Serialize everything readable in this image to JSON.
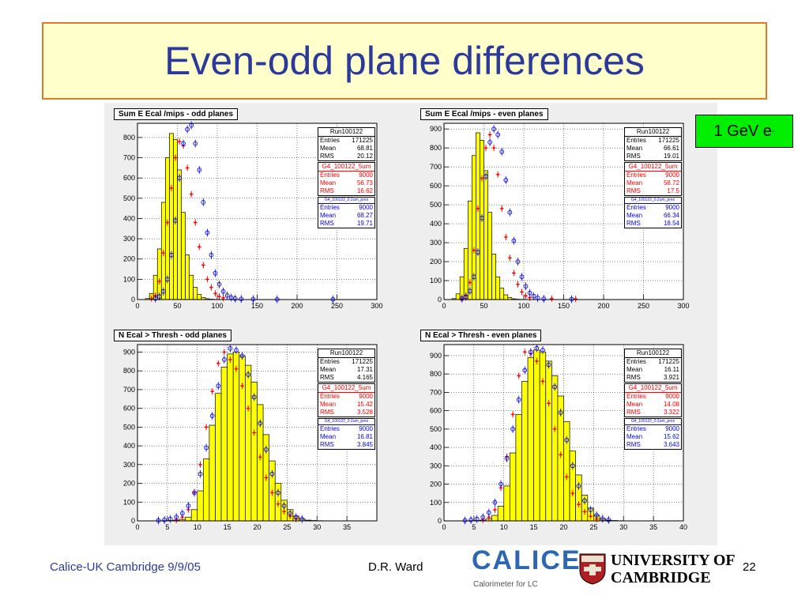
{
  "slide": {
    "title": "Even-odd plane differences",
    "energy_label": "1 GeV e",
    "energy_sup": "-",
    "footer_left": "Calice-UK Cambridge 9/9/05",
    "footer_author": "D.R. Ward",
    "page_number": "22",
    "logo_calice_text": "CALICE",
    "logo_calice_sub": "Calorimeter for LC",
    "logo_cambridge_line1": "UNIVERSITY OF",
    "logo_cambridge_line2": "CAMBRIDGE"
  },
  "colors": {
    "title_text": "#2b3a9a",
    "title_bg": "#ffffcc",
    "title_border": "#e07a2a",
    "data_fill": "#ffff00",
    "g4_5um": "#ff0000",
    "g4_02um": "#0000ff",
    "energy_bg": "#00ee00"
  },
  "chart_data": [
    {
      "type": "bar",
      "title": "Sum E Ecal  /mips - odd planes",
      "xlim": [
        0,
        300
      ],
      "ylim": [
        0,
        870
      ],
      "xticks": [
        "0",
        "50",
        "100",
        "150",
        "200",
        "250",
        "300"
      ],
      "yticks": [
        "0",
        "100",
        "200",
        "300",
        "400",
        "500",
        "600",
        "700",
        "800"
      ],
      "bin_width": 5,
      "bin_edges_start": 0,
      "data_hist": [
        0,
        0,
        5,
        30,
        120,
        250,
        480,
        700,
        820,
        790,
        640,
        430,
        220,
        120,
        60,
        25,
        10,
        4,
        2,
        1,
        0,
        0,
        0,
        0,
        0,
        0,
        0,
        0,
        0,
        0,
        0,
        0,
        0,
        0,
        0,
        0,
        0,
        0,
        0,
        0,
        0,
        0,
        0,
        0,
        0,
        0,
        0,
        0,
        0,
        0,
        0,
        0,
        0,
        0,
        0,
        0,
        0,
        0,
        0,
        0
      ],
      "red_points": [
        [
          17.5,
          5
        ],
        [
          22.5,
          20
        ],
        [
          27.5,
          90
        ],
        [
          32.5,
          230
        ],
        [
          37.5,
          380
        ],
        [
          42.5,
          550
        ],
        [
          47.5,
          700
        ],
        [
          52.5,
          780
        ],
        [
          57.5,
          760
        ],
        [
          62.5,
          650
        ],
        [
          67.5,
          520
        ],
        [
          72.5,
          380
        ],
        [
          77.5,
          260
        ],
        [
          82.5,
          170
        ],
        [
          87.5,
          100
        ],
        [
          92.5,
          60
        ],
        [
          97.5,
          30
        ],
        [
          102.5,
          15
        ],
        [
          107.5,
          8
        ]
      ],
      "blue_points": [
        [
          22.5,
          5
        ],
        [
          27.5,
          15
        ],
        [
          32.5,
          40
        ],
        [
          37.5,
          100
        ],
        [
          42.5,
          220
        ],
        [
          47.5,
          390
        ],
        [
          52.5,
          600
        ],
        [
          57.5,
          770
        ],
        [
          62.5,
          840
        ],
        [
          67.5,
          860
        ],
        [
          72.5,
          770
        ],
        [
          77.5,
          640
        ],
        [
          82.5,
          480
        ],
        [
          87.5,
          330
        ],
        [
          92.5,
          220
        ],
        [
          97.5,
          130
        ],
        [
          102.5,
          75
        ],
        [
          107.5,
          40
        ],
        [
          112.5,
          20
        ],
        [
          117.5,
          10
        ],
        [
          122.5,
          5
        ],
        [
          130,
          3
        ],
        [
          145,
          2
        ],
        [
          175,
          1
        ],
        [
          245,
          1
        ]
      ],
      "stats": {
        "run": {
          "name": "Run100122",
          "entries": "171225",
          "mean": "68.81",
          "rms": "20.12"
        },
        "g4_5um": {
          "name": "G4_100122_5um",
          "entries": "9000",
          "mean": "56.73",
          "rms": "16.62"
        },
        "g4_02um": {
          "name": "G4_100122_0.2um_prex",
          "entries": "9000",
          "mean": "68.27",
          "rms": "19.71"
        }
      }
    },
    {
      "type": "bar",
      "title": "Sum E Ecal  /mips - even planes",
      "xlim": [
        0,
        300
      ],
      "ylim": [
        0,
        930
      ],
      "xticks": [
        "0",
        "50",
        "100",
        "150",
        "200",
        "250",
        "300"
      ],
      "yticks": [
        "0",
        "100",
        "200",
        "300",
        "400",
        "500",
        "600",
        "700",
        "800",
        "900"
      ],
      "bin_width": 5,
      "bin_edges_start": 0,
      "data_hist": [
        0,
        0,
        5,
        30,
        120,
        270,
        520,
        760,
        880,
        840,
        680,
        460,
        240,
        120,
        60,
        25,
        10,
        4,
        2,
        1,
        0,
        0,
        0,
        0,
        0,
        0,
        0,
        0,
        0,
        0,
        0,
        0,
        0,
        0,
        0,
        0,
        0,
        0,
        0,
        0,
        0,
        0,
        0,
        0,
        0,
        0,
        0,
        0,
        0,
        0,
        0,
        0,
        0,
        0,
        0,
        0,
        0,
        0,
        0,
        0
      ],
      "red_points": [
        [
          22.5,
          5
        ],
        [
          27.5,
          20
        ],
        [
          32.5,
          90
        ],
        [
          37.5,
          260
        ],
        [
          42.5,
          480
        ],
        [
          47.5,
          640
        ],
        [
          52.5,
          800
        ],
        [
          57.5,
          870
        ],
        [
          62.5,
          800
        ],
        [
          67.5,
          660
        ],
        [
          72.5,
          480
        ],
        [
          77.5,
          330
        ],
        [
          82.5,
          220
        ],
        [
          87.5,
          140
        ],
        [
          92.5,
          80
        ],
        [
          97.5,
          40
        ],
        [
          102.5,
          20
        ],
        [
          107.5,
          10
        ],
        [
          135,
          5
        ],
        [
          165,
          3
        ]
      ],
      "blue_points": [
        [
          22.5,
          5
        ],
        [
          27.5,
          15
        ],
        [
          32.5,
          45
        ],
        [
          37.5,
          120
        ],
        [
          42.5,
          250
        ],
        [
          47.5,
          430
        ],
        [
          52.5,
          650
        ],
        [
          57.5,
          830
        ],
        [
          62.5,
          900
        ],
        [
          67.5,
          870
        ],
        [
          72.5,
          780
        ],
        [
          77.5,
          630
        ],
        [
          82.5,
          460
        ],
        [
          87.5,
          310
        ],
        [
          92.5,
          200
        ],
        [
          97.5,
          120
        ],
        [
          102.5,
          70
        ],
        [
          107.5,
          35
        ],
        [
          112.5,
          18
        ],
        [
          117.5,
          8
        ],
        [
          125,
          4
        ],
        [
          160,
          2
        ]
      ],
      "stats": {
        "run": {
          "name": "Run100122",
          "entries": "171225",
          "mean": "66.61",
          "rms": "19.01"
        },
        "g4_5um": {
          "name": "G4_100122_5um",
          "entries": "9000",
          "mean": "58.72",
          "rms": "17.5"
        },
        "g4_02um": {
          "name": "G4_100122_0.2um_prex",
          "entries": "9000",
          "mean": "66.34",
          "rms": "18.54"
        }
      }
    },
    {
      "type": "bar",
      "title": "N Ecal > Thresh - odd planes",
      "xlim": [
        0,
        40
      ],
      "ylim": [
        0,
        940
      ],
      "xticks": [
        "0",
        "5",
        "10",
        "15",
        "20",
        "25",
        "30",
        "35"
      ],
      "yticks": [
        "0",
        "100",
        "200",
        "300",
        "400",
        "500",
        "600",
        "700",
        "800",
        "900"
      ],
      "bin_width": 1,
      "bin_edges_start": 0,
      "data_hist": [
        0,
        0,
        0,
        0,
        1,
        2,
        4,
        8,
        20,
        60,
        160,
        330,
        510,
        680,
        820,
        890,
        900,
        880,
        830,
        740,
        620,
        460,
        320,
        200,
        110,
        60,
        25,
        10,
        4,
        2,
        1,
        0,
        0,
        0,
        0,
        0,
        0,
        0,
        0,
        0
      ],
      "red_points": [
        [
          6.5,
          5
        ],
        [
          7.5,
          20
        ],
        [
          8.5,
          60
        ],
        [
          9.5,
          150
        ],
        [
          10.5,
          300
        ],
        [
          11.5,
          500
        ],
        [
          12.5,
          690
        ],
        [
          13.5,
          840
        ],
        [
          14.5,
          900
        ],
        [
          15.5,
          860
        ],
        [
          16.5,
          810
        ],
        [
          17.5,
          720
        ],
        [
          18.5,
          600
        ],
        [
          19.5,
          470
        ],
        [
          20.5,
          340
        ],
        [
          21.5,
          230
        ],
        [
          22.5,
          150
        ],
        [
          23.5,
          90
        ],
        [
          24.5,
          50
        ],
        [
          25.5,
          25
        ],
        [
          26.5,
          10
        ]
      ],
      "blue_points": [
        [
          3.5,
          2
        ],
        [
          4.5,
          5
        ],
        [
          5.5,
          10
        ],
        [
          6.5,
          20
        ],
        [
          7.5,
          40
        ],
        [
          8.5,
          80
        ],
        [
          9.5,
          150
        ],
        [
          10.5,
          250
        ],
        [
          11.5,
          390
        ],
        [
          12.5,
          560
        ],
        [
          13.5,
          720
        ],
        [
          14.5,
          860
        ],
        [
          15.5,
          920
        ],
        [
          16.5,
          910
        ],
        [
          17.5,
          880
        ],
        [
          18.5,
          780
        ],
        [
          19.5,
          660
        ],
        [
          20.5,
          520
        ],
        [
          21.5,
          380
        ],
        [
          22.5,
          250
        ],
        [
          23.5,
          150
        ],
        [
          24.5,
          80
        ],
        [
          25.5,
          40
        ],
        [
          26.5,
          20
        ],
        [
          27.5,
          10
        ]
      ],
      "stats": {
        "run": {
          "name": "Run100122",
          "entries": "171225",
          "mean": "17.31",
          "rms": "4.165"
        },
        "g4_5um": {
          "name": "G4_100122_5um",
          "entries": "9000",
          "mean": "15.42",
          "rms": "3.528"
        },
        "g4_02um": {
          "name": "G4_100122_0.2um_prex",
          "entries": "9000",
          "mean": "16.81",
          "rms": "3.845"
        }
      }
    },
    {
      "type": "bar",
      "title": "N Ecal > Thresh - even planes",
      "xlim": [
        0,
        40
      ],
      "ylim": [
        0,
        960
      ],
      "xticks": [
        "0",
        "5",
        "10",
        "15",
        "20",
        "25",
        "30",
        "35",
        "40"
      ],
      "yticks": [
        "0",
        "100",
        "200",
        "300",
        "400",
        "500",
        "600",
        "700",
        "800",
        "900"
      ],
      "bin_width": 1,
      "bin_edges_start": 0,
      "data_hist": [
        0,
        0,
        0,
        0,
        1,
        2,
        4,
        10,
        30,
        80,
        190,
        370,
        580,
        760,
        890,
        930,
        920,
        870,
        790,
        680,
        540,
        380,
        250,
        140,
        70,
        30,
        12,
        4,
        2,
        1,
        0,
        0,
        0,
        0,
        0,
        0,
        0,
        0,
        0,
        0
      ],
      "red_points": [
        [
          6.5,
          5
        ],
        [
          7.5,
          20
        ],
        [
          8.5,
          60
        ],
        [
          9.5,
          180
        ],
        [
          10.5,
          350
        ],
        [
          11.5,
          580
        ],
        [
          12.5,
          790
        ],
        [
          13.5,
          920
        ],
        [
          14.5,
          910
        ],
        [
          15.5,
          870
        ],
        [
          16.5,
          760
        ],
        [
          17.5,
          640
        ],
        [
          18.5,
          500
        ],
        [
          19.5,
          360
        ],
        [
          20.5,
          240
        ],
        [
          21.5,
          150
        ],
        [
          22.5,
          90
        ],
        [
          23.5,
          50
        ],
        [
          24.5,
          25
        ],
        [
          25.5,
          10
        ]
      ],
      "blue_points": [
        [
          3.5,
          2
        ],
        [
          4.5,
          5
        ],
        [
          5.5,
          10
        ],
        [
          6.5,
          20
        ],
        [
          7.5,
          45
        ],
        [
          8.5,
          100
        ],
        [
          9.5,
          200
        ],
        [
          10.5,
          340
        ],
        [
          11.5,
          500
        ],
        [
          12.5,
          660
        ],
        [
          13.5,
          820
        ],
        [
          14.5,
          920
        ],
        [
          15.5,
          940
        ],
        [
          16.5,
          930
        ],
        [
          17.5,
          850
        ],
        [
          18.5,
          730
        ],
        [
          19.5,
          590
        ],
        [
          20.5,
          440
        ],
        [
          21.5,
          300
        ],
        [
          22.5,
          190
        ],
        [
          23.5,
          110
        ],
        [
          24.5,
          60
        ],
        [
          25.5,
          30
        ],
        [
          26.5,
          12
        ],
        [
          27.5,
          5
        ]
      ],
      "stats": {
        "run": {
          "name": "Run100122",
          "entries": "171225",
          "mean": "16.11",
          "rms": "3.921"
        },
        "g4_5um": {
          "name": "G4_100122_5um",
          "entries": "9000",
          "mean": "14.08",
          "rms": "3.322"
        },
        "g4_02um": {
          "name": "G4_100122_0.2um_prex",
          "entries": "9000",
          "mean": "15.62",
          "rms": "3.643"
        }
      }
    }
  ]
}
